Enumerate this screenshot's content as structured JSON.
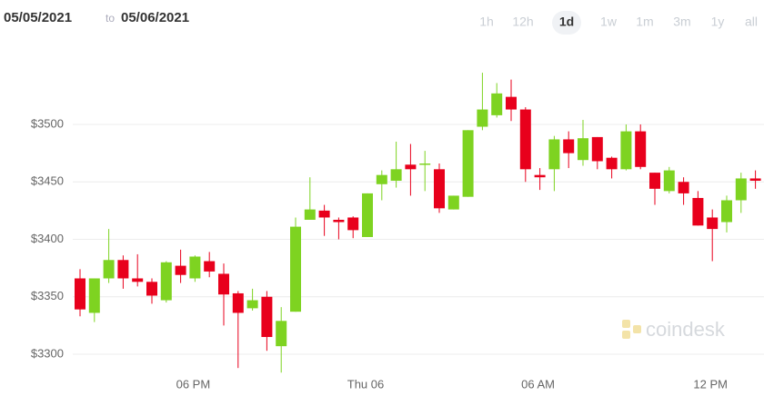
{
  "header": {
    "from": "05/05/2021",
    "to_word": "to",
    "to": "05/06/2021"
  },
  "ranges": [
    "1h",
    "12h",
    "1d",
    "1w",
    "1m",
    "3m",
    "1y",
    "all"
  ],
  "selected_range_index": 2,
  "watermark": "coindesk",
  "chart_data": {
    "type": "candlestick",
    "categories": [
      null,
      null,
      null,
      null,
      null,
      null,
      null,
      null,
      "06 PM",
      null,
      null,
      null,
      null,
      null,
      null,
      null,
      null,
      null,
      null,
      null,
      "Thu 06",
      null,
      null,
      null,
      null,
      null,
      null,
      null,
      null,
      null,
      null,
      null,
      "06 AM",
      null,
      null,
      null,
      null,
      null,
      null,
      null,
      null,
      null,
      null,
      null,
      "12 PM",
      null,
      null,
      null
    ],
    "open": [
      3366,
      3336,
      3366,
      3382,
      3366,
      3363,
      3347,
      3377,
      3366,
      3381,
      3370,
      3353,
      3340,
      3350,
      3307,
      3337,
      3417,
      3425,
      3417,
      3419,
      3402,
      3448,
      3451,
      3465,
      3465,
      3461,
      3426,
      3437,
      3498,
      3508,
      3524,
      3513,
      3456,
      3461,
      3487,
      3469,
      3489,
      3471,
      3461,
      3494,
      3458,
      3442,
      3450,
      3436,
      3419,
      3415,
      3434,
      3453
    ],
    "high": [
      3374,
      3366,
      3409,
      3386,
      3387,
      3366,
      3381,
      3391,
      3386,
      3389,
      3379,
      3355,
      3357,
      3355,
      3341,
      3419,
      3454,
      3430,
      3419,
      3420,
      3440,
      3460,
      3485,
      3483,
      3477,
      3466,
      3438,
      3495,
      3545,
      3536,
      3539,
      3515,
      3462,
      3490,
      3494,
      3504,
      3489,
      3472,
      3500,
      3500,
      3458,
      3463,
      3454,
      3442,
      3426,
      3438,
      3458,
      3460
    ],
    "low": [
      3333,
      3328,
      3362,
      3357,
      3359,
      3344,
      3345,
      3362,
      3363,
      3367,
      3325,
      3288,
      3338,
      3303,
      3284,
      3337,
      3417,
      3403,
      3400,
      3401,
      3402,
      3434,
      3445,
      3438,
      3442,
      3423,
      3426,
      3437,
      3495,
      3506,
      3503,
      3450,
      3443,
      3442,
      3462,
      3464,
      3461,
      3453,
      3460,
      3461,
      3430,
      3440,
      3430,
      3412,
      3381,
      3406,
      3423,
      3444
    ],
    "close": [
      3339,
      3366,
      3382,
      3366,
      3363,
      3351,
      3380,
      3369,
      3385,
      3372,
      3352,
      3336,
      3347,
      3315,
      3329,
      3411,
      3426,
      3419,
      3415,
      3408,
      3440,
      3456,
      3461,
      3461,
      3466,
      3427,
      3438,
      3495,
      3513,
      3527,
      3513,
      3461,
      3454,
      3487,
      3475,
      3488,
      3468,
      3461,
      3494,
      3463,
      3444,
      3460,
      3440,
      3412,
      3409,
      3434,
      3453,
      3451
    ],
    "up_color": "#7ed321",
    "down_color": "#e8001c",
    "ylim": [
      3280,
      3560
    ],
    "yticks": [
      {
        "value": 3300,
        "label": "$3300"
      },
      {
        "value": 3350,
        "label": "$3350"
      },
      {
        "value": 3400,
        "label": "$3400"
      },
      {
        "value": 3450,
        "label": "$3450"
      },
      {
        "value": 3500,
        "label": "$3500"
      }
    ],
    "grid": true
  }
}
